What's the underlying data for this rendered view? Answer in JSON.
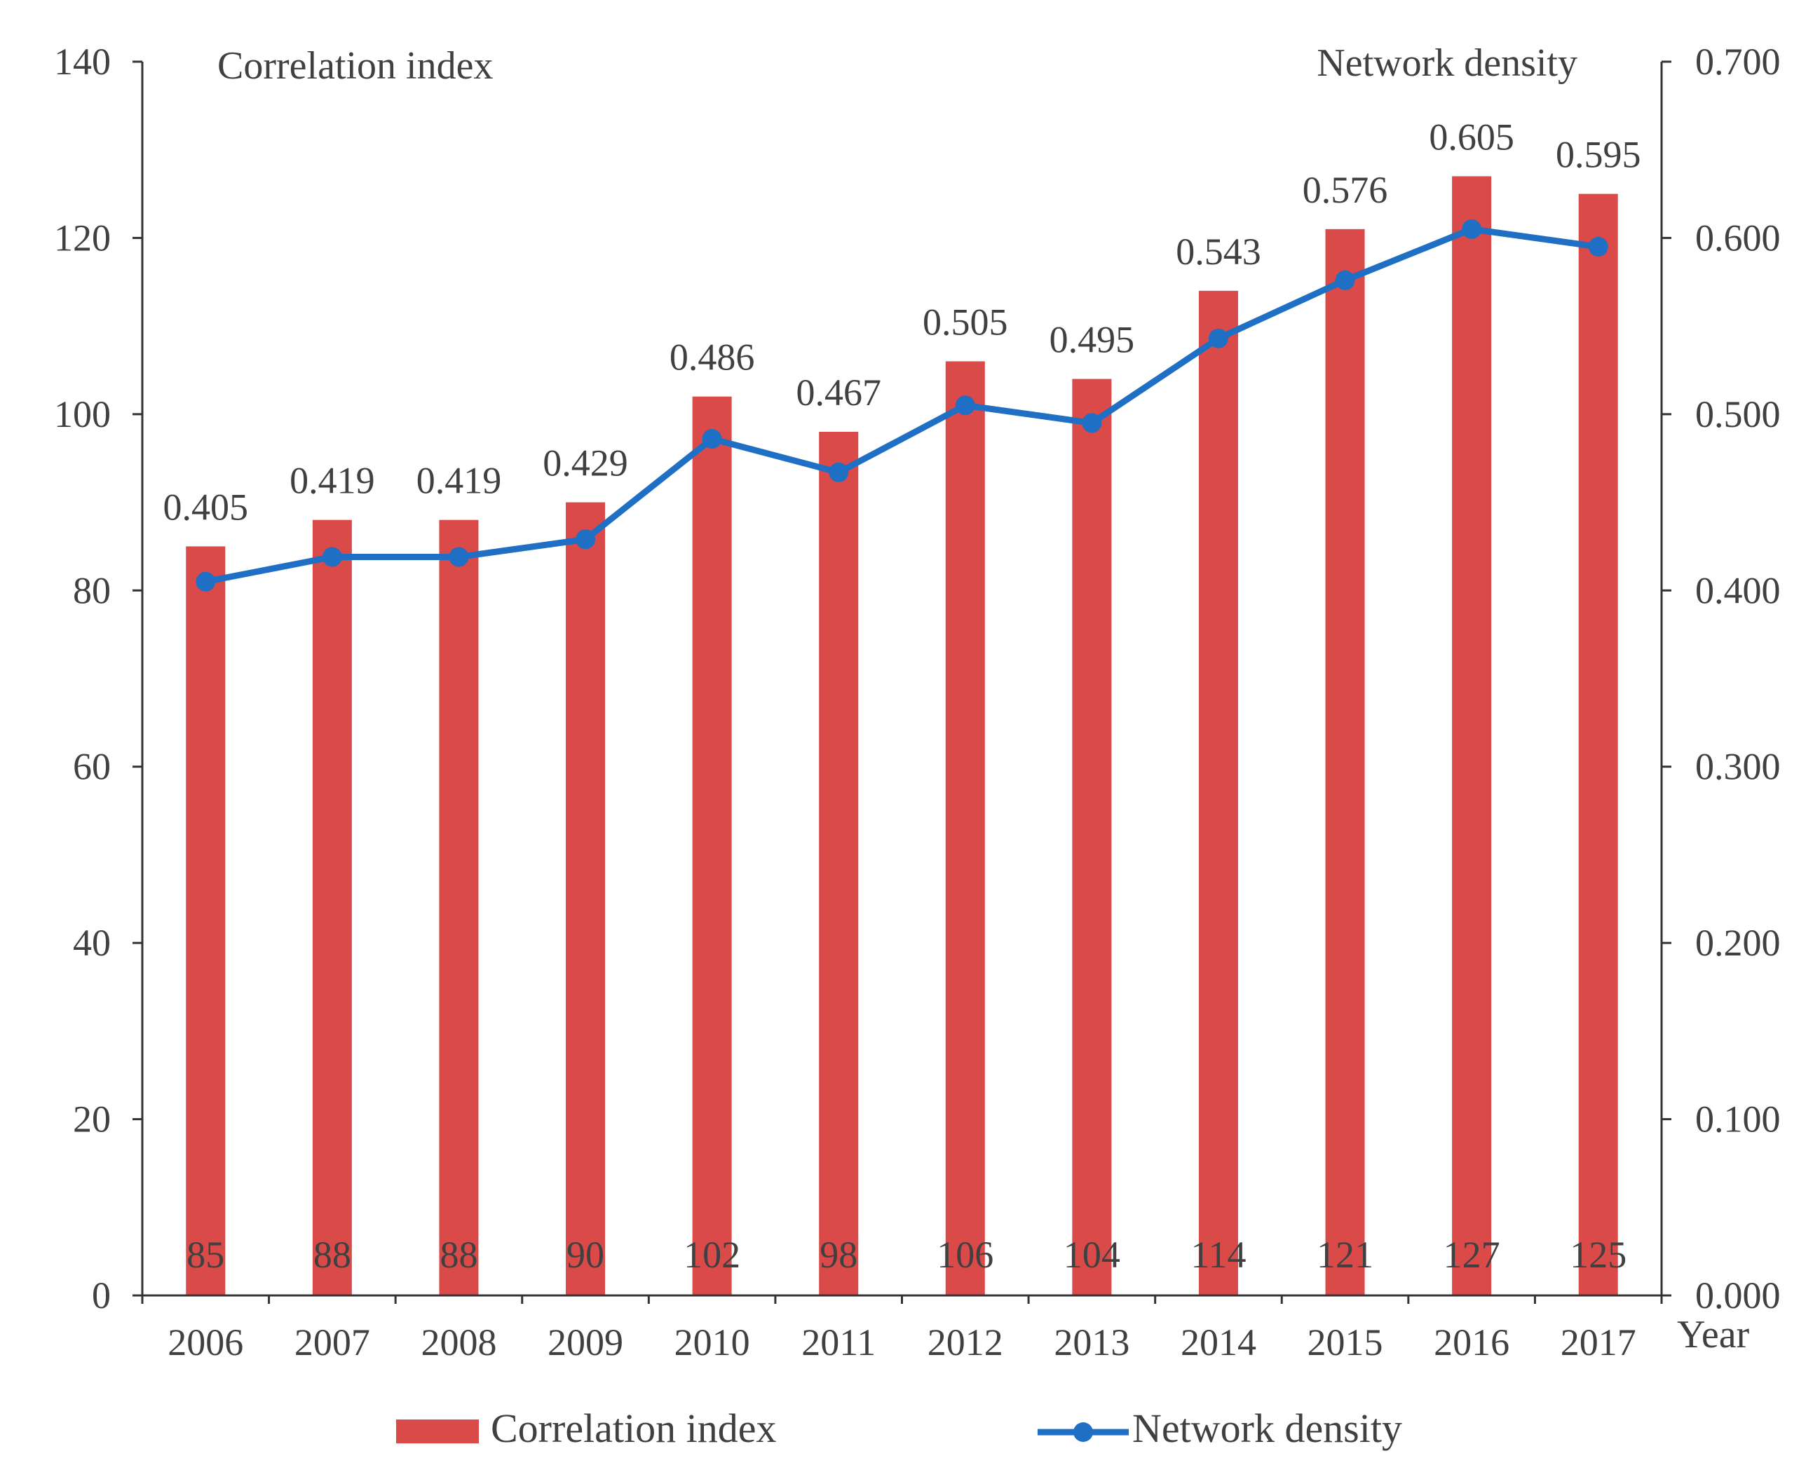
{
  "chart_data": {
    "type": "bar",
    "categories": [
      "2006",
      "2007",
      "2008",
      "2009",
      "2010",
      "2011",
      "2012",
      "2013",
      "2014",
      "2015",
      "2016",
      "2017"
    ],
    "xlabel": "Year",
    "left_axis": {
      "title": "Correlation index",
      "ylim": [
        0,
        140
      ],
      "ticks": [
        "0",
        "20",
        "40",
        "60",
        "80",
        "100",
        "120",
        "140"
      ]
    },
    "right_axis": {
      "title": "Network density",
      "ylim": [
        0,
        0.7
      ],
      "ticks": [
        "0.000",
        "0.100",
        "0.200",
        "0.300",
        "0.400",
        "0.500",
        "0.600",
        "0.700"
      ]
    },
    "series": [
      {
        "name": "Correlation index",
        "type": "bar",
        "axis": "left",
        "color": "#D94A49",
        "values": [
          85,
          88,
          88,
          90,
          102,
          98,
          106,
          104,
          114,
          121,
          127,
          125
        ],
        "labels": [
          "85",
          "88",
          "88",
          "90",
          "102",
          "98",
          "106",
          "104",
          "114",
          "121",
          "127",
          "125"
        ]
      },
      {
        "name": "Network density",
        "type": "line",
        "axis": "right",
        "color": "#1F6FC5",
        "values": [
          0.405,
          0.419,
          0.419,
          0.429,
          0.486,
          0.467,
          0.505,
          0.495,
          0.543,
          0.576,
          0.605,
          0.595
        ],
        "labels": [
          "0.405",
          "0.419",
          "0.419",
          "0.429",
          "0.486",
          "0.467",
          "0.505",
          "0.495",
          "0.543",
          "0.576",
          "0.605",
          "0.595"
        ]
      }
    ],
    "legend": {
      "position": "bottom",
      "items": [
        "Correlation index",
        "Network density"
      ]
    },
    "grid": false
  }
}
